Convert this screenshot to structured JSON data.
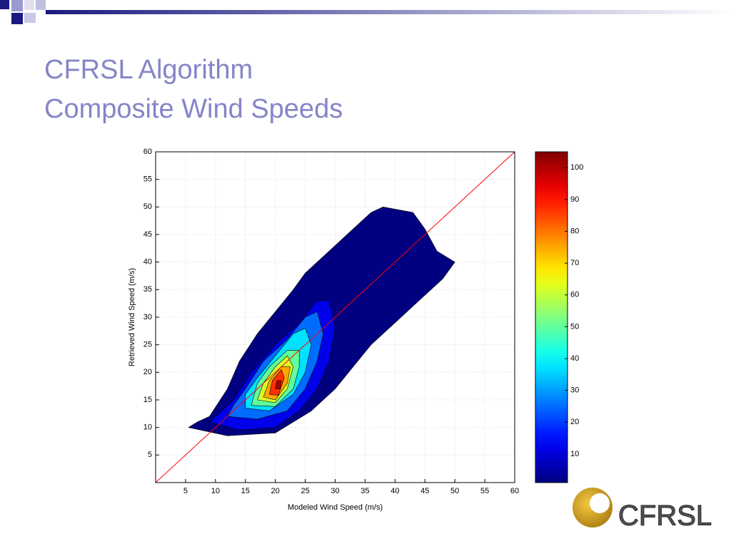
{
  "slide_title": [
    "CFRSL Algorithm",
    "Composite Wind Speeds"
  ],
  "logo": "CFRSL",
  "chart_data": {
    "type": "contour",
    "xlabel": "Modeled Wind Speed (m/s)",
    "ylabel": "Retrieved Wind Speed (m/s)",
    "xlim": [
      0,
      60
    ],
    "ylim": [
      0,
      60
    ],
    "xticks": [
      5,
      10,
      15,
      20,
      25,
      30,
      35,
      40,
      45,
      50,
      55,
      60
    ],
    "yticks": [
      5,
      10,
      15,
      20,
      25,
      30,
      35,
      40,
      45,
      50,
      55,
      60
    ],
    "grid": true,
    "identity_line": true,
    "identity_color": "#ff0000",
    "colormap": "jet",
    "clim": [
      1,
      105
    ],
    "cticks": [
      10,
      20,
      30,
      40,
      50,
      60,
      70,
      80,
      90,
      100
    ],
    "contours": [
      {
        "level": 1,
        "polygon": [
          [
            5.5,
            10
          ],
          [
            12,
            8.5
          ],
          [
            20,
            9
          ],
          [
            26,
            13
          ],
          [
            30,
            17
          ],
          [
            33,
            21
          ],
          [
            36,
            25
          ],
          [
            40,
            29
          ],
          [
            44,
            33
          ],
          [
            48,
            37
          ],
          [
            50,
            40
          ],
          [
            47,
            42
          ],
          [
            45,
            46
          ],
          [
            43,
            49
          ],
          [
            38,
            50
          ],
          [
            36,
            49
          ],
          [
            33,
            46
          ],
          [
            29,
            42
          ],
          [
            25,
            38
          ],
          [
            23,
            35
          ],
          [
            20,
            31
          ],
          [
            17,
            27
          ],
          [
            14,
            22
          ],
          [
            12,
            17
          ],
          [
            9,
            12
          ],
          [
            7,
            11
          ]
        ]
      },
      {
        "level": 12,
        "polygon": [
          [
            9,
            11
          ],
          [
            14,
            9.5
          ],
          [
            20,
            10
          ],
          [
            24,
            13
          ],
          [
            27,
            17
          ],
          [
            29,
            22
          ],
          [
            30,
            28
          ],
          [
            29,
            33
          ],
          [
            27,
            33
          ],
          [
            24,
            29
          ],
          [
            20,
            25
          ],
          [
            16,
            20
          ],
          [
            13,
            15
          ],
          [
            10,
            12
          ]
        ]
      },
      {
        "level": 25,
        "polygon": [
          [
            12,
            12
          ],
          [
            17,
            11.5
          ],
          [
            22,
            13
          ],
          [
            25,
            17
          ],
          [
            27,
            22
          ],
          [
            28,
            27
          ],
          [
            27,
            31
          ],
          [
            25,
            30
          ],
          [
            22,
            26
          ],
          [
            18,
            22
          ],
          [
            15,
            17
          ],
          [
            13,
            14
          ]
        ]
      },
      {
        "level": 37,
        "polygon": [
          [
            15,
            13.5
          ],
          [
            19,
            13
          ],
          [
            23,
            16
          ],
          [
            25,
            20
          ],
          [
            26,
            25
          ],
          [
            25,
            28
          ],
          [
            23,
            27
          ],
          [
            20,
            23
          ],
          [
            17,
            19
          ],
          [
            15,
            16
          ]
        ]
      },
      {
        "level": 50,
        "polygon": [
          [
            16,
            14
          ],
          [
            20,
            13.8
          ],
          [
            23,
            17
          ],
          [
            24,
            21
          ],
          [
            24,
            24
          ],
          [
            22,
            24
          ],
          [
            19,
            21
          ],
          [
            17,
            18
          ]
        ]
      },
      {
        "level": 62,
        "polygon": [
          [
            17,
            15
          ],
          [
            20,
            14.5
          ],
          [
            22,
            17
          ],
          [
            23,
            21
          ],
          [
            22,
            23
          ],
          [
            20,
            21
          ],
          [
            18,
            18
          ]
        ]
      },
      {
        "level": 75,
        "polygon": [
          [
            18,
            15.5
          ],
          [
            20,
            15
          ],
          [
            22,
            18
          ],
          [
            22.5,
            21
          ],
          [
            21,
            21
          ],
          [
            19,
            18.5
          ]
        ]
      },
      {
        "level": 87,
        "polygon": [
          [
            19,
            16
          ],
          [
            20.5,
            15.8
          ],
          [
            21.5,
            19
          ],
          [
            21,
            20.5
          ],
          [
            19.5,
            18.5
          ]
        ]
      },
      {
        "level": 100,
        "polygon": [
          [
            20,
            17
          ],
          [
            20.8,
            17
          ],
          [
            21,
            18.5
          ],
          [
            20.3,
            18.5
          ]
        ]
      }
    ]
  }
}
